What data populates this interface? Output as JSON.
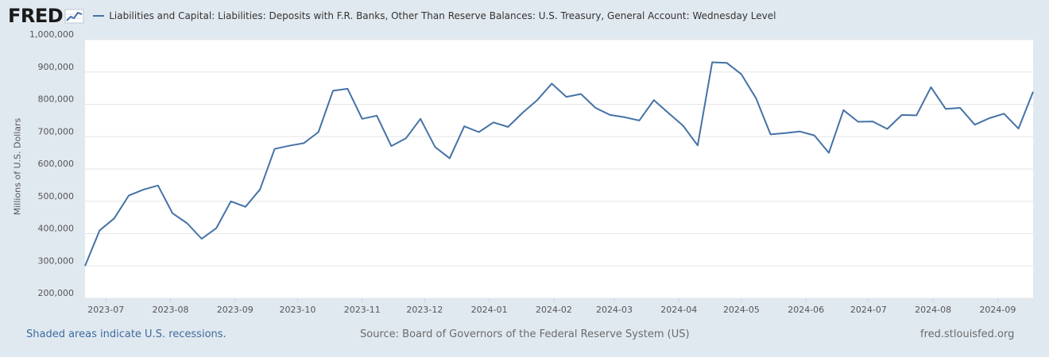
{
  "header": {
    "logo_text": "FRED",
    "legend_label": "Liabilities and Capital: Liabilities: Deposits with F.R. Banks, Other Than Reserve Balances: U.S. Treasury, General Account: Wednesday Level"
  },
  "footer": {
    "recession_note": "Shaded areas indicate U.S. recessions.",
    "source": "Source: Board of Governors of the Federal Reserve System (US)",
    "site": "fred.stlouisfed.org"
  },
  "colors": {
    "line": "#4572a7",
    "background": "#e1e9f0",
    "plot_background": "#ffffff"
  },
  "chart_data": {
    "type": "line",
    "ylabel": "Millions of U.S. Dollars",
    "ylim": [
      200000,
      1000000
    ],
    "yticks": [
      200000,
      300000,
      400000,
      500000,
      600000,
      700000,
      800000,
      900000,
      1000000
    ],
    "ytick_labels": [
      "200,000",
      "300,000",
      "400,000",
      "500,000",
      "600,000",
      "700,000",
      "800,000",
      "900,000",
      "1,000,000"
    ],
    "xlim": [
      "2023-06-21",
      "2024-09-18"
    ],
    "xtick_dates": [
      "2023-07-01",
      "2023-08-01",
      "2023-09-01",
      "2023-10-01",
      "2023-11-01",
      "2023-12-01",
      "2024-01-01",
      "2024-02-01",
      "2024-03-01",
      "2024-04-01",
      "2024-05-01",
      "2024-06-01",
      "2024-07-01",
      "2024-08-01",
      "2024-09-01"
    ],
    "xtick_labels": [
      "2023-07",
      "2023-08",
      "2023-09",
      "2023-10",
      "2023-11",
      "2023-12",
      "2024-01",
      "2024-02",
      "2024-03",
      "2024-04",
      "2024-05",
      "2024-06",
      "2024-07",
      "2024-08",
      "2024-09"
    ],
    "grid": true,
    "series": [
      {
        "name": "Liabilities and Capital: Liabilities: Deposits with F.R. Banks, Other Than Reserve Balances: U.S. Treasury, General Account: Wednesday Level",
        "color": "#4572a7",
        "x": [
          "2023-06-21",
          "2023-06-28",
          "2023-07-05",
          "2023-07-12",
          "2023-07-19",
          "2023-07-26",
          "2023-08-02",
          "2023-08-09",
          "2023-08-16",
          "2023-08-23",
          "2023-08-30",
          "2023-09-06",
          "2023-09-13",
          "2023-09-20",
          "2023-09-27",
          "2023-10-04",
          "2023-10-11",
          "2023-10-18",
          "2023-10-25",
          "2023-11-01",
          "2023-11-08",
          "2023-11-15",
          "2023-11-22",
          "2023-11-29",
          "2023-12-06",
          "2023-12-13",
          "2023-12-20",
          "2023-12-27",
          "2024-01-03",
          "2024-01-10",
          "2024-01-17",
          "2024-01-24",
          "2024-01-31",
          "2024-02-07",
          "2024-02-14",
          "2024-02-21",
          "2024-02-28",
          "2024-03-06",
          "2024-03-13",
          "2024-03-20",
          "2024-03-27",
          "2024-04-03",
          "2024-04-10",
          "2024-04-17",
          "2024-04-24",
          "2024-05-01",
          "2024-05-08",
          "2024-05-15",
          "2024-05-22",
          "2024-05-29",
          "2024-06-05",
          "2024-06-12",
          "2024-06-19",
          "2024-06-26",
          "2024-07-03",
          "2024-07-10",
          "2024-07-17",
          "2024-07-24",
          "2024-07-31",
          "2024-08-07",
          "2024-08-14",
          "2024-08-21",
          "2024-08-28",
          "2024-09-04",
          "2024-09-11",
          "2024-09-18"
        ],
        "values": [
          300000,
          410000,
          447000,
          518000,
          536000,
          549000,
          463000,
          432000,
          384000,
          417000,
          500000,
          483000,
          537000,
          662000,
          672000,
          680000,
          714000,
          842000,
          848000,
          755000,
          765000,
          671000,
          695000,
          755000,
          668000,
          633000,
          732000,
          714000,
          744000,
          730000,
          774000,
          813000,
          864000,
          823000,
          832000,
          789000,
          767000,
          760000,
          750000,
          813000,
          773000,
          734000,
          673000,
          930000,
          928000,
          893000,
          819000,
          707000,
          711000,
          716000,
          704000,
          650000,
          782000,
          746000,
          747000,
          724000,
          767000,
          766000,
          853000,
          786000,
          789000,
          737000,
          757000,
          771000,
          725000,
          839000
        ]
      }
    ]
  }
}
